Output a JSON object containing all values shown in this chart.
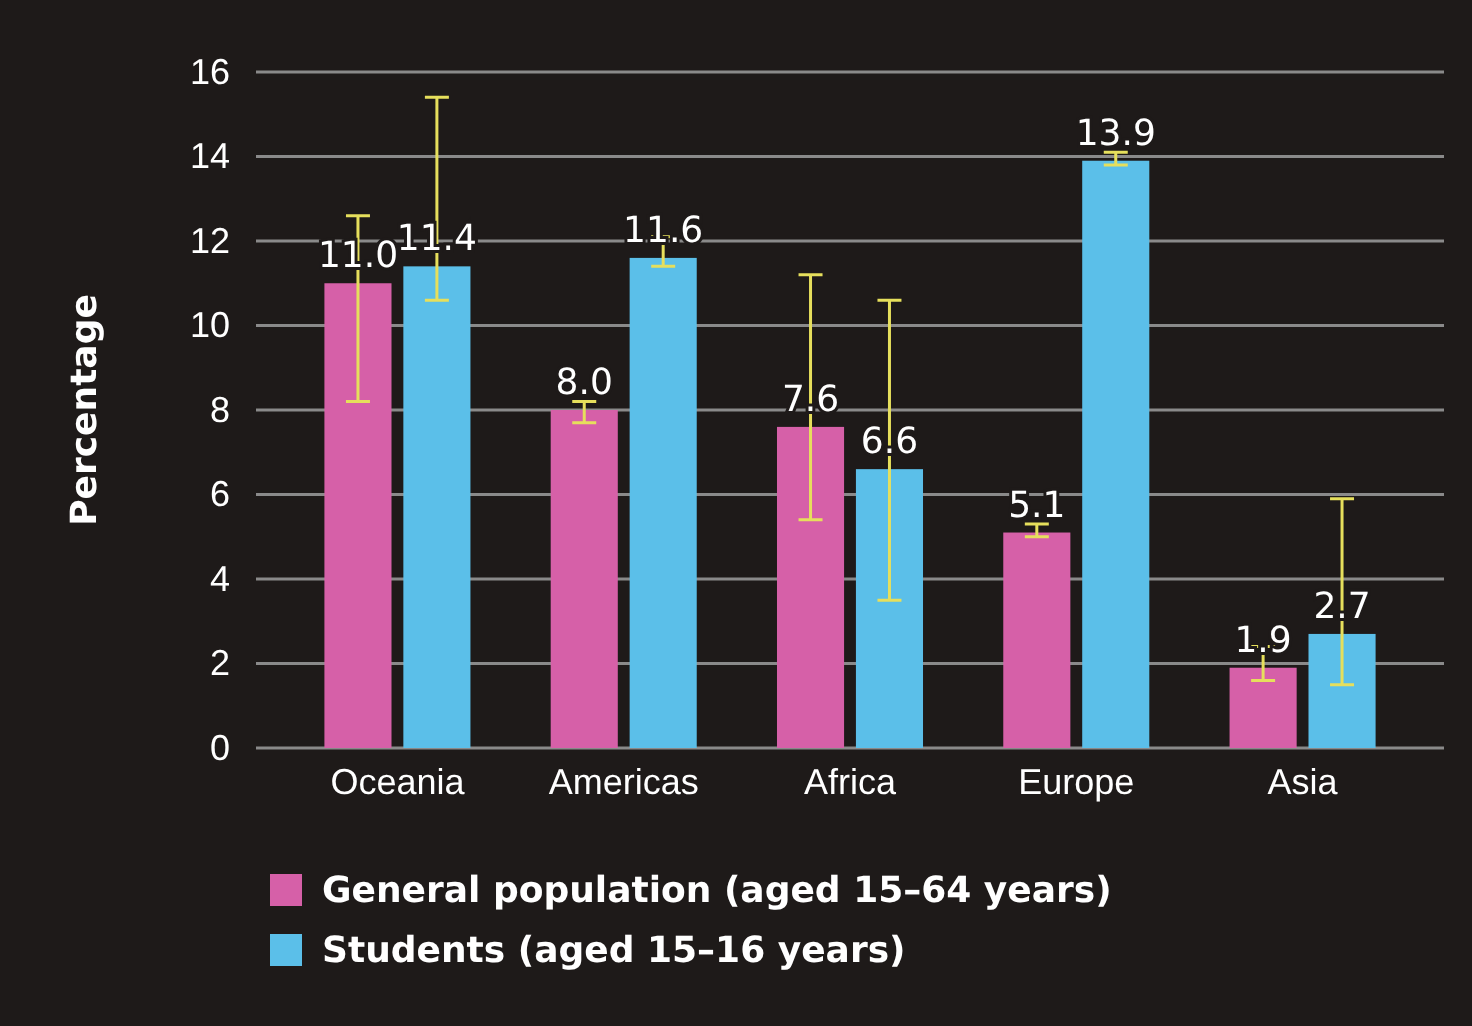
{
  "chart_data": {
    "type": "bar",
    "ylabel": "Percentage",
    "categories": [
      "Oceania",
      "Americas",
      "Africa",
      "Europe",
      "Asia"
    ],
    "series": [
      {
        "name": "General population (aged 15–64 years)",
        "color": "#d660a8",
        "values": [
          11.0,
          8.0,
          7.6,
          5.1,
          1.9
        ],
        "value_labels": [
          "11.0",
          "8.0",
          "7.6",
          "5.1",
          "1.9"
        ],
        "errors": [
          [
            8.2,
            12.6
          ],
          [
            7.7,
            8.2
          ],
          [
            5.4,
            11.2
          ],
          [
            5.0,
            5.3
          ],
          [
            1.6,
            2.4
          ]
        ]
      },
      {
        "name": "Students (aged 15–16 years)",
        "color": "#5bbfe9",
        "values": [
          11.4,
          11.6,
          6.6,
          13.9,
          2.7
        ],
        "value_labels": [
          "11.4",
          "11.6",
          "6.6",
          "13.9",
          "2.7"
        ],
        "errors": [
          [
            10.6,
            15.4
          ],
          [
            11.4,
            12.1
          ],
          [
            3.5,
            10.6
          ],
          [
            13.8,
            14.1
          ],
          [
            1.5,
            5.9
          ]
        ]
      }
    ],
    "ylim": [
      0,
      16
    ],
    "yticks": [
      0,
      2,
      4,
      6,
      8,
      10,
      12,
      14,
      16
    ],
    "grid": "y",
    "legend": "bottom"
  }
}
